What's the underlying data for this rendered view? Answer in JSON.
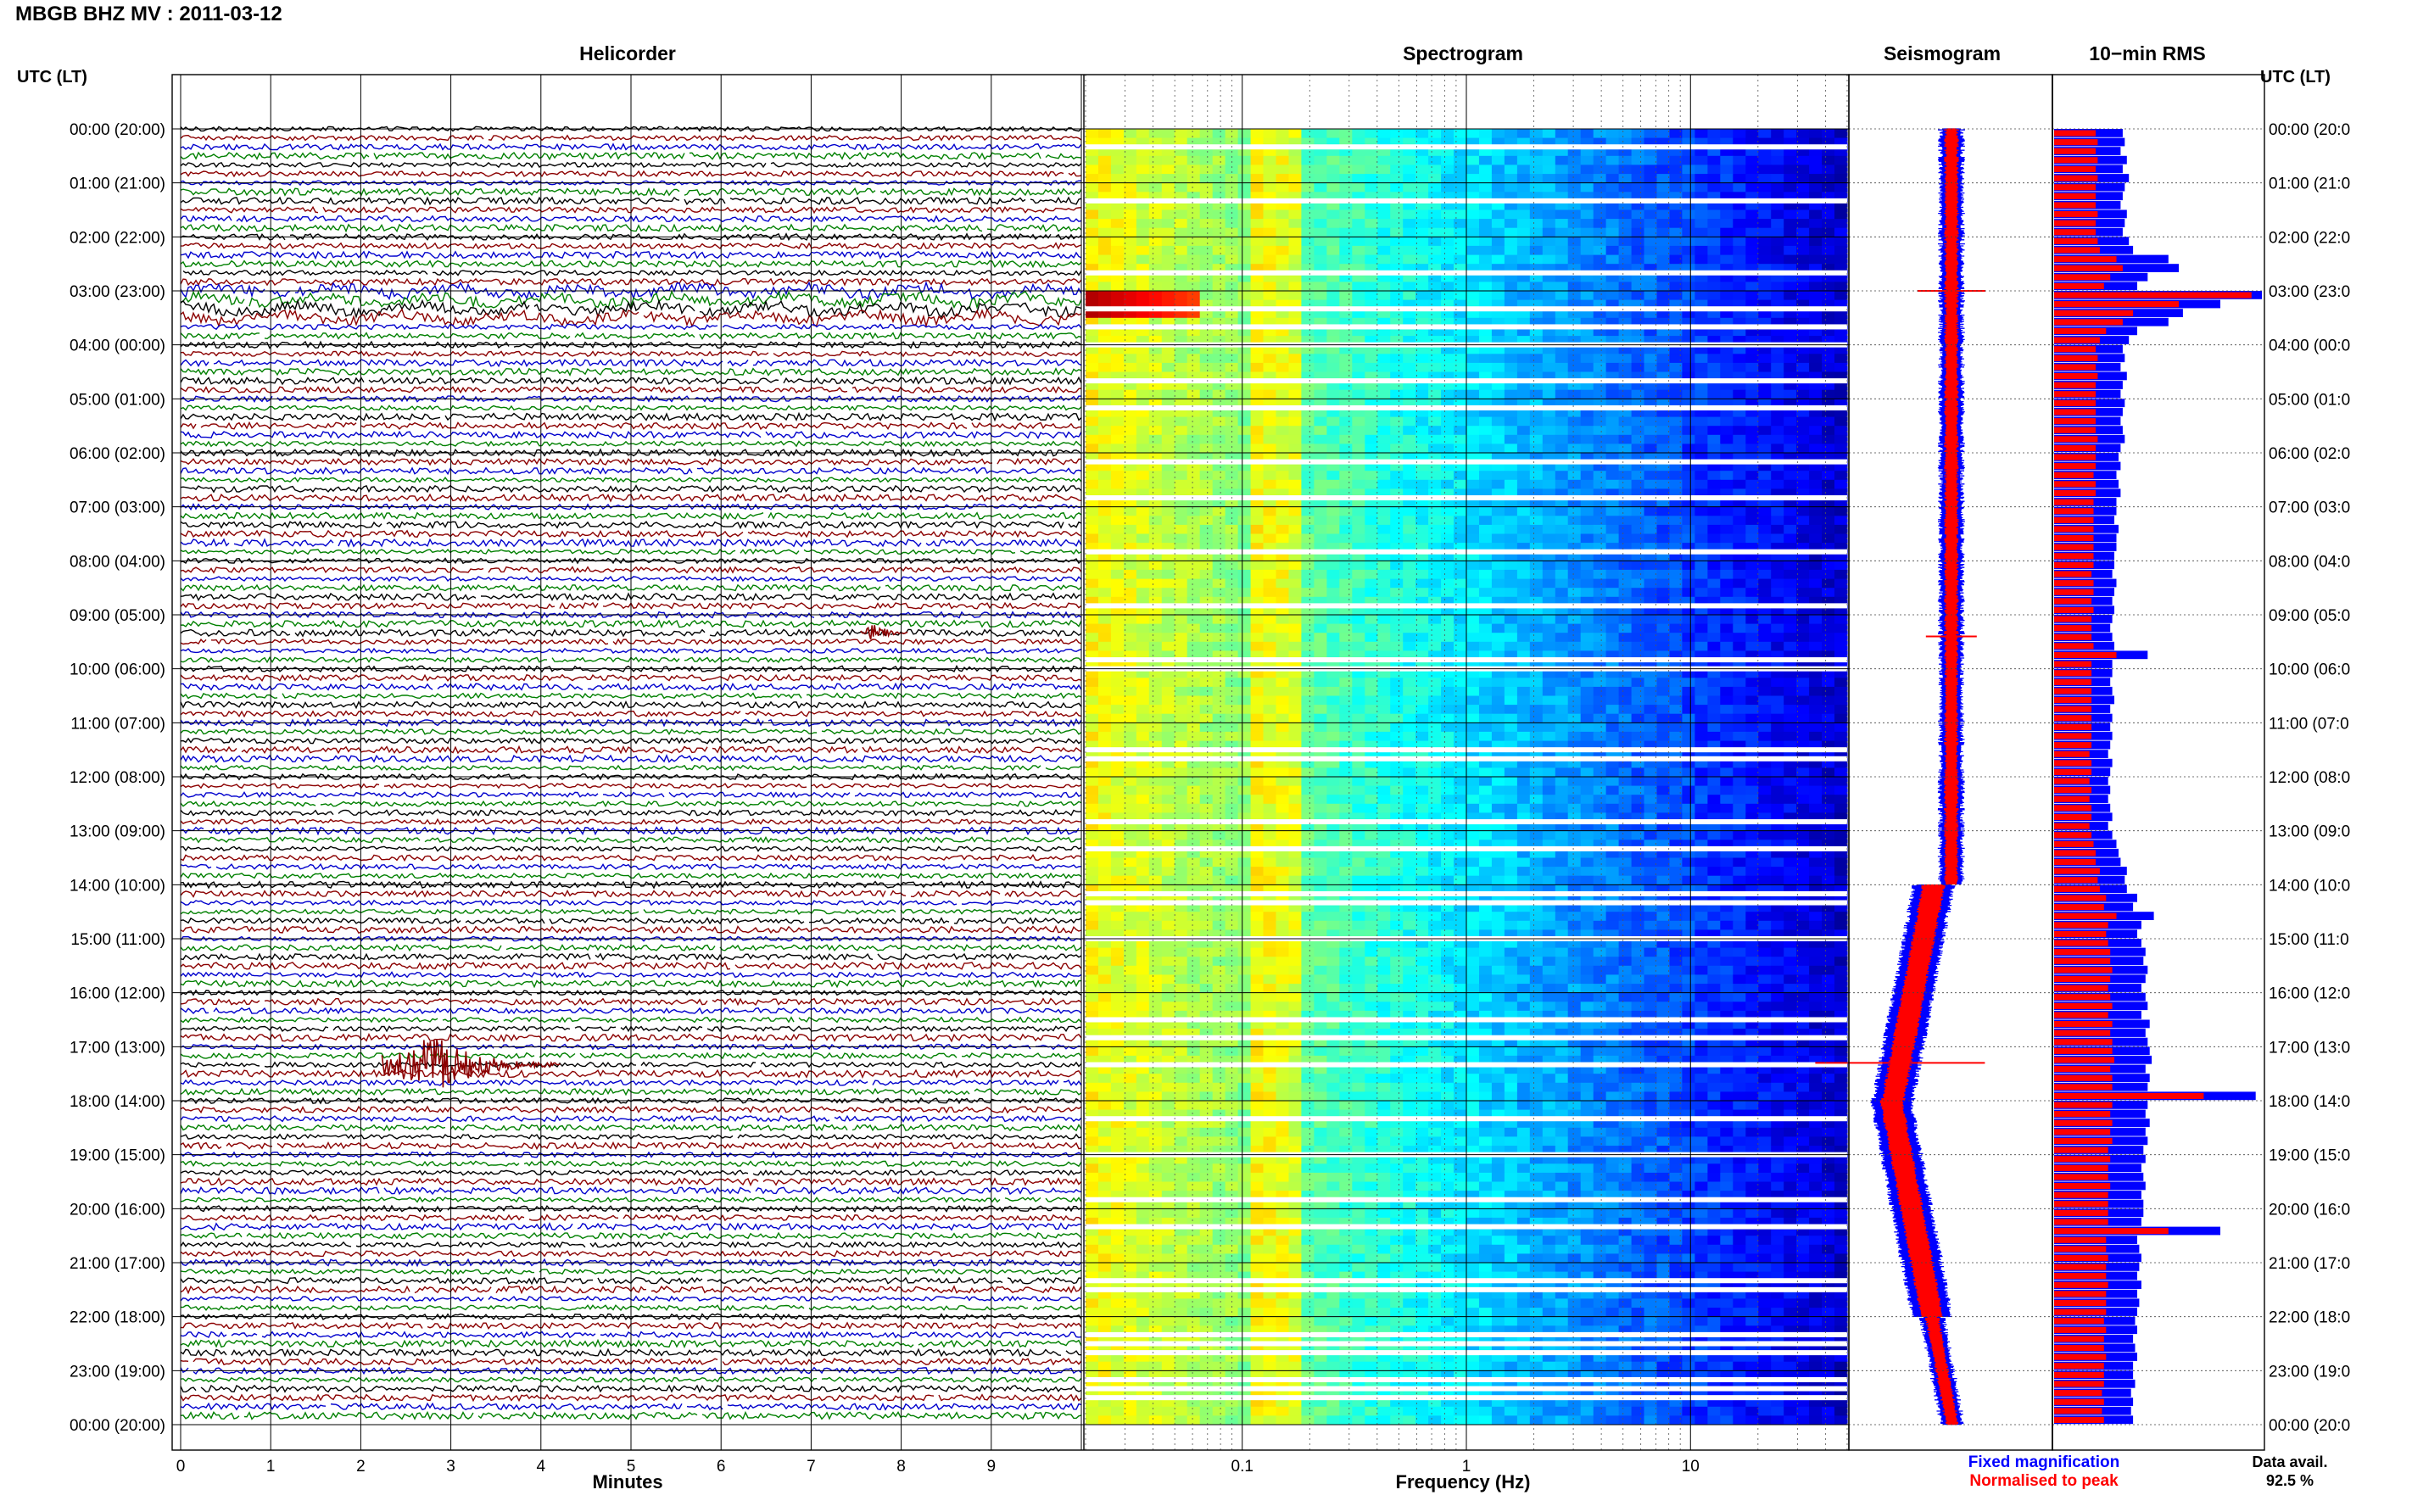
{
  "station_title": "MBGB BHZ MV : 2011-03-12",
  "panels": {
    "helicorder": "Helicorder",
    "spectrogram": "Spectrogram",
    "seismogram": "Seismogram",
    "rms": "10−min RMS"
  },
  "time_axis_label_left": "UTC (LT)",
  "time_axis_label_right": "UTC (LT)",
  "hour_labels": [
    "00:00 (20:00)",
    "01:00 (21:00)",
    "02:00 (22:00)",
    "03:00 (23:00)",
    "04:00 (00:00)",
    "05:00 (01:00)",
    "06:00 (02:00)",
    "07:00 (03:00)",
    "08:00 (04:00)",
    "09:00 (05:00)",
    "10:00 (06:00)",
    "11:00 (07:00)",
    "12:00 (08:00)",
    "13:00 (09:00)",
    "14:00 (10:00)",
    "15:00 (11:00)",
    "16:00 (12:00)",
    "17:00 (13:00)",
    "18:00 (14:00)",
    "19:00 (15:00)",
    "20:00 (16:00)",
    "21:00 (17:00)",
    "22:00 (18:00)",
    "23:00 (19:00)",
    "00:00 (20:00)"
  ],
  "hour_labels_right": [
    "00:00 (20:0",
    "01:00 (21:0",
    "02:00 (22:0",
    "03:00 (23:0",
    "04:00 (00:0",
    "05:00 (01:0",
    "06:00 (02:0",
    "07:00 (03:0",
    "08:00 (04:0",
    "09:00 (05:0",
    "10:00 (06:0",
    "11:00 (07:0",
    "12:00 (08:0",
    "13:00 (09:0",
    "14:00 (10:0",
    "15:00 (11:0",
    "16:00 (12:0",
    "17:00 (13:0",
    "18:00 (14:0",
    "19:00 (15:0",
    "20:00 (16:0",
    "21:00 (17:0",
    "22:00 (18:0",
    "23:00 (19:0",
    "00:00 (20:0"
  ],
  "helicorder_axis": {
    "xlabel": "Minutes",
    "ticks": [
      "0",
      "1",
      "2",
      "3",
      "4",
      "5",
      "6",
      "7",
      "8",
      "9"
    ],
    "trace_colors": [
      "#000000",
      "#8b0000",
      "#0000cd",
      "#008000"
    ]
  },
  "spectrogram_axis": {
    "xlabel": "Frequency (Hz)",
    "ticks": [
      "0.1",
      "1",
      "10"
    ],
    "xscale": "log",
    "xlim": [
      0.02,
      50
    ]
  },
  "seismogram_legend": {
    "fixed": "Fixed magnification",
    "normalised": "Normalised to peak",
    "fixed_color": "#0000ff",
    "normalised_color": "#ff0000"
  },
  "data_availability": {
    "label": "Data avail.",
    "value": "92.5 %"
  },
  "chart_data": [
    {
      "type": "line",
      "title": "Helicorder",
      "xlabel": "Minutes",
      "xlim": [
        0,
        10
      ],
      "rows_per_hour": 6,
      "hours": 24,
      "events": [
        {
          "time_utc": "03:00",
          "minute": 3.0,
          "description": "long-period oscillation"
        },
        {
          "time_utc": "09:20",
          "minute": 7.7,
          "amplitude": "moderate"
        },
        {
          "time_utc": "17:20",
          "minute": 2.8,
          "amplitude": "large"
        }
      ]
    },
    {
      "type": "heatmap",
      "title": "Spectrogram",
      "xlabel": "Frequency (Hz)",
      "xscale": "log",
      "xlim": [
        0.02,
        50
      ],
      "colormap": "jet",
      "gap_times_utc": [
        "00:20",
        "01:20",
        "02:40",
        "03:20",
        "03:40",
        "04:00",
        "04:40",
        "05:10",
        "06:10",
        "06:50",
        "07:50",
        "08:50",
        "09:50",
        "10:00",
        "11:30",
        "11:40",
        "12:50",
        "13:20",
        "14:10",
        "14:20",
        "15:00",
        "16:30",
        "16:50",
        "17:20",
        "18:20",
        "19:00",
        "19:50",
        "20:20",
        "21:20",
        "21:30",
        "22:20",
        "22:30",
        "22:40",
        "23:10",
        "23:20",
        "23:30"
      ]
    },
    {
      "type": "bar",
      "title": "10−min RMS",
      "orientation": "horizontal",
      "series": [
        {
          "name": "Fixed magnification",
          "color": "#0000ff",
          "values": [
            0.33,
            0.34,
            0.32,
            0.35,
            0.33,
            0.36,
            0.34,
            0.33,
            0.32,
            0.35,
            0.34,
            0.33,
            0.36,
            0.38,
            0.55,
            0.6,
            0.45,
            0.4,
            1.0,
            0.8,
            0.62,
            0.55,
            0.4,
            0.36,
            0.33,
            0.34,
            0.32,
            0.35,
            0.33,
            0.32,
            0.34,
            0.33,
            0.32,
            0.33,
            0.34,
            0.32,
            0.31,
            0.32,
            0.3,
            0.31,
            0.32,
            0.3,
            0.3,
            0.29,
            0.31,
            0.3,
            0.3,
            0.29,
            0.29,
            0.28,
            0.3,
            0.29,
            0.28,
            0.29,
            0.28,
            0.27,
            0.28,
            0.29,
            0.45,
            0.28,
            0.28,
            0.27,
            0.28,
            0.29,
            0.27,
            0.28,
            0.27,
            0.28,
            0.27,
            0.26,
            0.28,
            0.27,
            0.26,
            0.27,
            0.26,
            0.27,
            0.28,
            0.26,
            0.28,
            0.3,
            0.31,
            0.32,
            0.35,
            0.34,
            0.35,
            0.4,
            0.38,
            0.48,
            0.42,
            0.4,
            0.42,
            0.44,
            0.43,
            0.45,
            0.44,
            0.42,
            0.44,
            0.45,
            0.42,
            0.46,
            0.44,
            0.45,
            0.46,
            0.47,
            0.44,
            0.46,
            0.45,
            0.97,
            0.45,
            0.44,
            0.46,
            0.44,
            0.45,
            0.43,
            0.44,
            0.42,
            0.43,
            0.44,
            0.42,
            0.43,
            0.43,
            0.42,
            0.8,
            0.4,
            0.41,
            0.42,
            0.41,
            0.4,
            0.42,
            0.4,
            0.41,
            0.4,
            0.39,
            0.4,
            0.38,
            0.39,
            0.4,
            0.38,
            0.38,
            0.39,
            0.37,
            0.38,
            0.37,
            0.38
          ]
        },
        {
          "name": "Normalised to peak",
          "color": "#ff0000",
          "values": [
            0.2,
            0.21,
            0.2,
            0.21,
            0.2,
            0.21,
            0.2,
            0.2,
            0.2,
            0.21,
            0.2,
            0.2,
            0.21,
            0.22,
            0.3,
            0.33,
            0.27,
            0.24,
            0.95,
            0.6,
            0.38,
            0.33,
            0.25,
            0.22,
            0.2,
            0.21,
            0.2,
            0.21,
            0.2,
            0.2,
            0.2,
            0.2,
            0.2,
            0.2,
            0.21,
            0.2,
            0.2,
            0.2,
            0.19,
            0.2,
            0.2,
            0.19,
            0.19,
            0.19,
            0.19,
            0.19,
            0.19,
            0.19,
            0.19,
            0.18,
            0.19,
            0.19,
            0.18,
            0.19,
            0.18,
            0.18,
            0.18,
            0.19,
            0.3,
            0.18,
            0.18,
            0.18,
            0.18,
            0.18,
            0.18,
            0.18,
            0.18,
            0.18,
            0.18,
            0.17,
            0.18,
            0.18,
            0.17,
            0.18,
            0.17,
            0.18,
            0.18,
            0.17,
            0.18,
            0.19,
            0.2,
            0.2,
            0.22,
            0.21,
            0.22,
            0.25,
            0.24,
            0.3,
            0.26,
            0.25,
            0.26,
            0.27,
            0.27,
            0.28,
            0.27,
            0.26,
            0.27,
            0.28,
            0.26,
            0.28,
            0.27,
            0.28,
            0.28,
            0.29,
            0.27,
            0.28,
            0.28,
            0.72,
            0.28,
            0.27,
            0.28,
            0.27,
            0.28,
            0.26,
            0.27,
            0.26,
            0.26,
            0.27,
            0.26,
            0.26,
            0.26,
            0.26,
            0.55,
            0.25,
            0.25,
            0.26,
            0.25,
            0.25,
            0.26,
            0.25,
            0.25,
            0.25,
            0.24,
            0.25,
            0.24,
            0.24,
            0.25,
            0.24,
            0.24,
            0.24,
            0.23,
            0.24,
            0.23,
            0.24
          ]
        }
      ]
    }
  ]
}
